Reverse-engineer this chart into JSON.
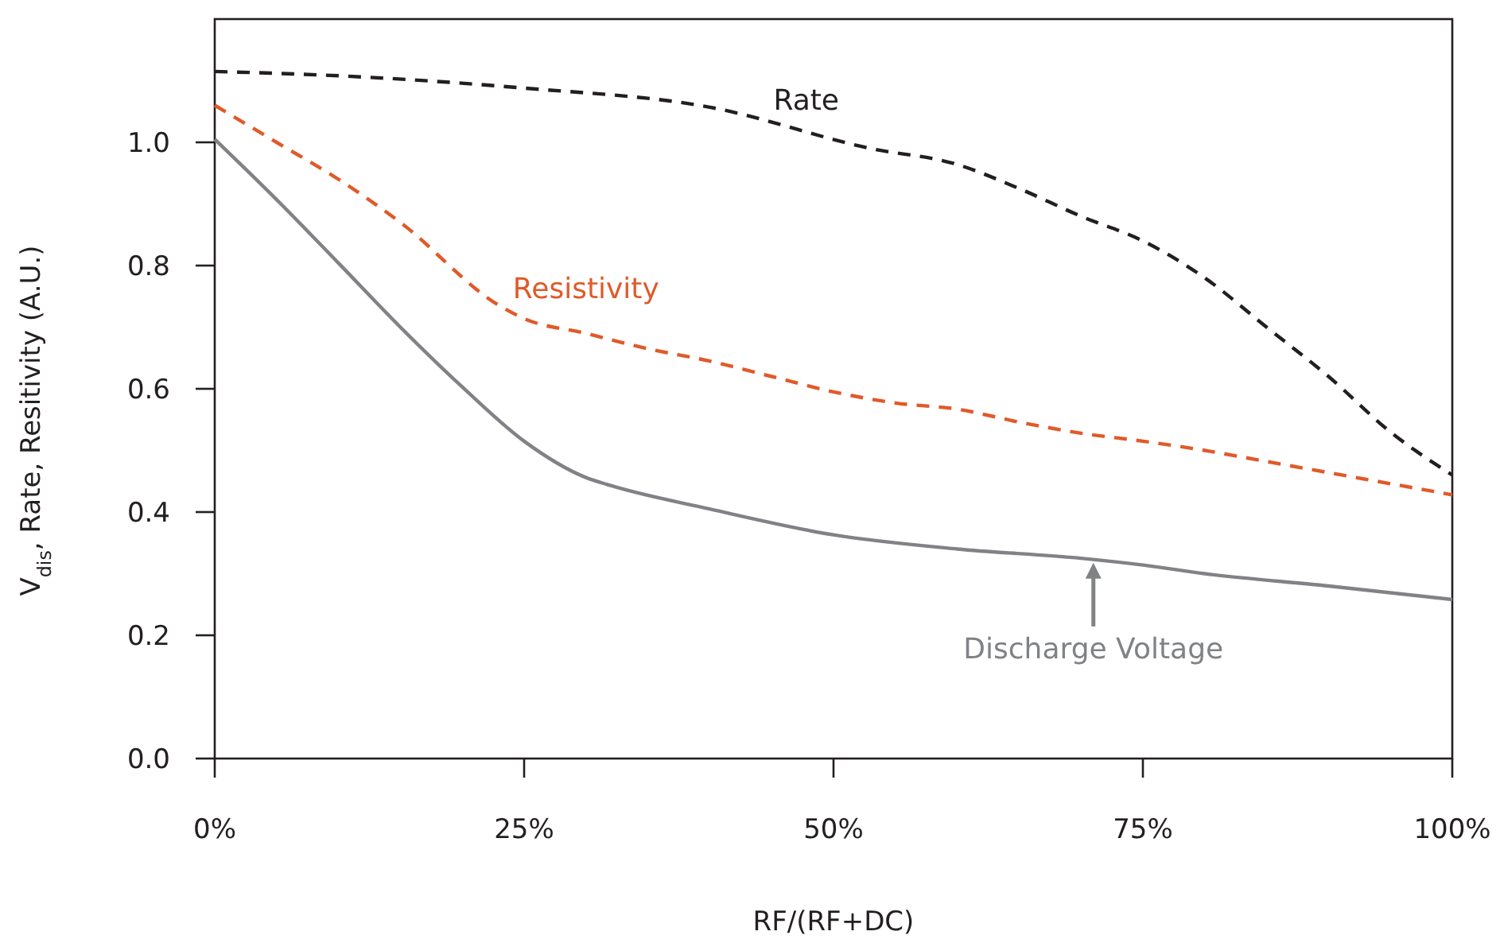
{
  "chart_data": {
    "type": "line",
    "xlabel": "RF/(RF+DC)",
    "ylabel": "V$_{dis}$, Rate, Resitivity (A.U.)",
    "xlim": [
      0,
      100
    ],
    "xticks": [
      {
        "value": 0,
        "label": "0%"
      },
      {
        "value": 25,
        "label": "25%"
      },
      {
        "value": 50,
        "label": "50%"
      },
      {
        "value": 75,
        "label": "75%"
      },
      {
        "value": 100,
        "label": "100%"
      }
    ],
    "ylim": [
      0,
      1.2
    ],
    "yticks": [
      {
        "value": 0,
        "label": "0.0"
      },
      {
        "value": 0.2,
        "label": "0.2"
      },
      {
        "value": 0.4,
        "label": "0.4"
      },
      {
        "value": 0.6,
        "label": "0.6"
      },
      {
        "value": 0.8,
        "label": "0.8"
      },
      {
        "value": 1,
        "label": "1.0"
      }
    ],
    "grid": false,
    "series": [
      {
        "name": "Rate",
        "color": "#231f20",
        "line_style": "dashed",
        "x": [
          0,
          10,
          25,
          40,
          53,
          60,
          65,
          70,
          75,
          80,
          85,
          90,
          95,
          100
        ],
        "values": [
          1.115,
          1.108,
          1.088,
          1.057,
          0.99,
          0.964,
          0.925,
          0.88,
          0.84,
          0.78,
          0.7,
          0.62,
          0.53,
          0.46
        ]
      },
      {
        "name": "Resistivity",
        "color": "#e05a2a",
        "line_style": "dashed",
        "x": [
          0,
          5,
          10,
          15,
          23,
          25,
          30,
          35,
          40,
          45,
          50,
          55,
          60,
          65,
          70,
          75,
          80,
          85,
          90,
          95,
          100
        ],
        "values": [
          1.06,
          1.0,
          0.94,
          0.87,
          0.735,
          0.714,
          0.69,
          0.665,
          0.645,
          0.62,
          0.595,
          0.577,
          0.567,
          0.546,
          0.528,
          0.515,
          0.5,
          0.482,
          0.464,
          0.446,
          0.428
        ]
      },
      {
        "name": "Discharge Voltage",
        "color": "#808285",
        "line_style": "solid",
        "x": [
          0,
          5,
          10,
          15,
          20,
          25,
          30,
          32,
          40,
          50,
          60,
          70,
          75,
          80,
          90,
          100
        ],
        "values": [
          1.005,
          0.907,
          0.804,
          0.7,
          0.603,
          0.515,
          0.456,
          0.443,
          0.405,
          0.363,
          0.34,
          0.325,
          0.314,
          0.3,
          0.28,
          0.258
        ]
      }
    ]
  }
}
